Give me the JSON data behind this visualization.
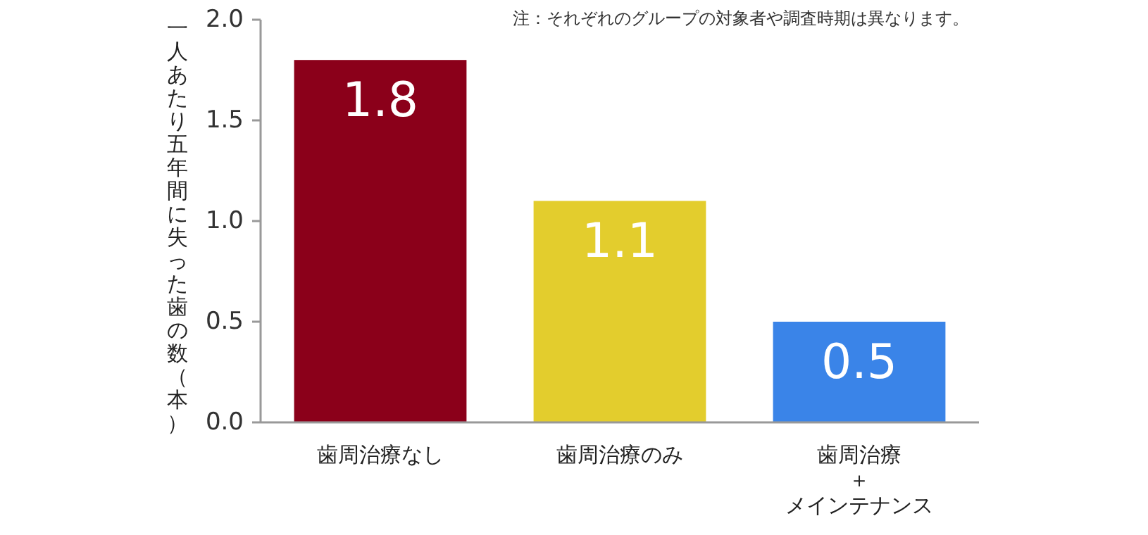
{
  "chart_data": {
    "type": "bar",
    "ylabel": "一人あたり五年間に失った歯の数（本）",
    "annotations": [
      "注：それぞれのグループの対象者や調査時期は異なります。"
    ],
    "categories": [
      "歯周治療なし",
      "歯周治療のみ",
      "歯周治療＋メインテナンス"
    ],
    "values": [
      1.8,
      1.1,
      0.5
    ],
    "colors": [
      "#8b001a",
      "#e3cd2d",
      "#3a84e8"
    ],
    "ylim": [
      0,
      2
    ],
    "yticks": [
      {
        "value": 0,
        "label": "0.0"
      },
      {
        "value": 0.5,
        "label": "0.5"
      },
      {
        "value": 1,
        "label": "1.0"
      },
      {
        "value": 1.5,
        "label": "1.5"
      },
      {
        "value": 2,
        "label": "2.0"
      }
    ],
    "data_labels": true
  }
}
